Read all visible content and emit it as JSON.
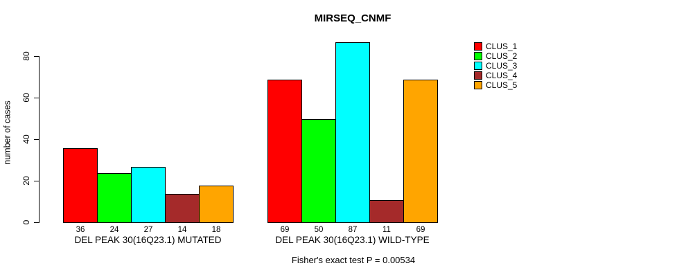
{
  "chart_data": {
    "type": "bar",
    "title": "MIRSEQ_CNMF",
    "ylabel": "number of cases",
    "xlabel": "",
    "ylim": [
      0,
      80
    ],
    "yticks": [
      0,
      20,
      40,
      60,
      80
    ],
    "grid": false,
    "legend_position": "right-inside",
    "bar_value_labels": true,
    "categories": [
      "DEL PEAK 30(16Q23.1) MUTATED",
      "DEL PEAK 30(16Q23.1) WILD-TYPE"
    ],
    "series": [
      {
        "name": "CLUS_1",
        "color": "#FF0000",
        "values": [
          36,
          69
        ]
      },
      {
        "name": "CLUS_2",
        "color": "#00FF00",
        "values": [
          24,
          50
        ]
      },
      {
        "name": "CLUS_3",
        "color": "#00FFFF",
        "values": [
          27,
          87
        ]
      },
      {
        "name": "CLUS_4",
        "color": "#A52A2A",
        "values": [
          14,
          11
        ]
      },
      {
        "name": "CLUS_5",
        "color": "#FFA500",
        "values": [
          18,
          69
        ]
      }
    ],
    "annotation": "Fisher's exact test P = 0.00534",
    "axis_color": "#000000",
    "background_color": "#FFFFFF"
  }
}
